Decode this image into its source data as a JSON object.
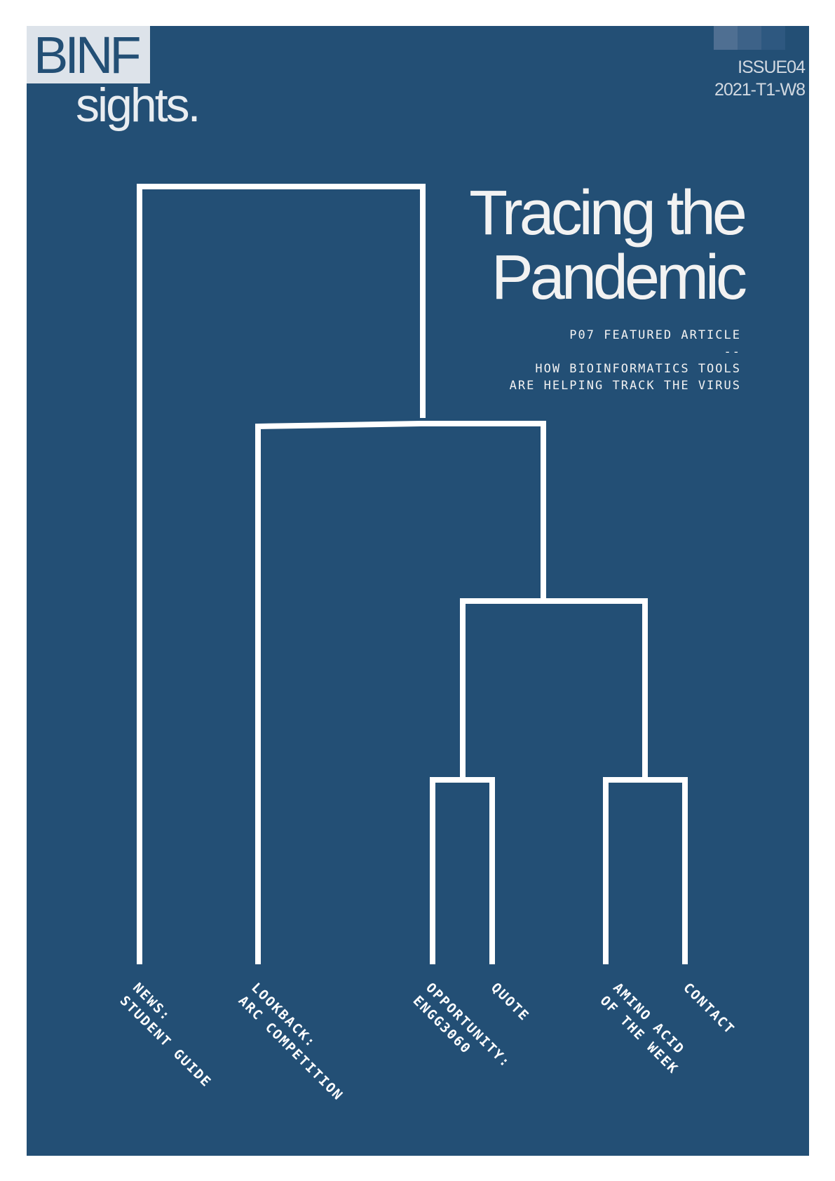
{
  "masthead": {
    "brand_top": "BINF",
    "brand_bottom": "sights.",
    "issue": "ISSUE04",
    "term": "2021-T1-W8",
    "swatch_colors": [
      "#4f6f92",
      "#3d6288",
      "#2e5880",
      "#234f75"
    ]
  },
  "headline": {
    "line1": "Tracing the",
    "line2": "Pandemic"
  },
  "featured": {
    "line1": "P07 FEATURED ARTICLE",
    "line2": "--",
    "line3": "HOW BIOINFORMATICS TOOLS",
    "line4": "ARE HELPING TRACK THE VIRUS"
  },
  "leaves": [
    {
      "line1": "NEWS:",
      "line2": "STUDENT GUIDE"
    },
    {
      "line1": "LOOKBACK:",
      "line2": "ARC COMPETITION"
    },
    {
      "line1": "OPPORTUNITY:",
      "line2": "ENGG3060"
    },
    {
      "line1": "QUOTE",
      "line2": ""
    },
    {
      "line1": "AMINO ACID",
      "line2": "OF THE WEEK"
    },
    {
      "line1": "CONTACT",
      "line2": ""
    }
  ],
  "colors": {
    "background": "#234f75",
    "tree": "#ffffff",
    "text": "#f2f2f2"
  }
}
